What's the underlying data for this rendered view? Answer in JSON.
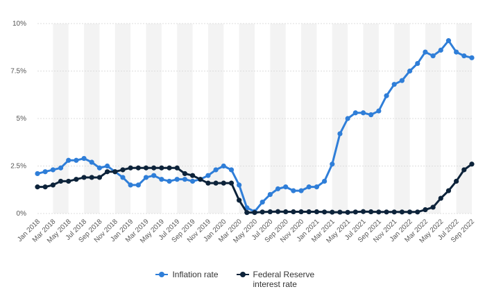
{
  "chart_data": {
    "type": "line",
    "title": "",
    "xlabel": "",
    "ylabel": "",
    "ylim": [
      0,
      10
    ],
    "y_ticks": [
      0,
      2.5,
      5,
      7.5,
      10
    ],
    "y_tick_labels": [
      "0%",
      "2.5%",
      "5%",
      "7.5%",
      "10%"
    ],
    "grid": "alternating vertical bands",
    "legend_position": "bottom",
    "categories": [
      "Jan 2018",
      "Feb 2018",
      "Mar 2018",
      "Apr 2018",
      "May 2018",
      "Jun 2018",
      "Jul 2018",
      "Aug 2018",
      "Sep 2018",
      "Oct 2018",
      "Nov 2018",
      "Dec 2018",
      "Jan 2019",
      "Feb 2019",
      "Mar 2019",
      "Apr 2019",
      "May 2019",
      "Jun 2019",
      "Jul 2019",
      "Aug 2019",
      "Sep 2019",
      "Oct 2019",
      "Nov 2019",
      "Dec 2019",
      "Jan 2020",
      "Feb 2020",
      "Mar 2020",
      "Apr 2020",
      "May 2020",
      "Jun 2020",
      "Jul 2020",
      "Aug 2020",
      "Sep 2020",
      "Oct 2020",
      "Nov 2020",
      "Dec 2020",
      "Jan 2021",
      "Feb 2021",
      "Mar 2021",
      "Apr 2021",
      "May 2021",
      "Jun 2021",
      "Jul 2021",
      "Aug 2021",
      "Sep 2021",
      "Oct 2021",
      "Nov 2021",
      "Dec 2021",
      "Jan 2022",
      "Feb 2022",
      "Mar 2022",
      "Apr 2022",
      "May 2022",
      "Jun 2022",
      "Jul 2022",
      "Aug 2022",
      "Sep 2022"
    ],
    "tick_labels": [
      "Jan 2018",
      "Mar 2018",
      "May 2018",
      "Jul 2018",
      "Sep 2018",
      "Nov 2018",
      "Jan 2019",
      "Mar 2019",
      "May 2019",
      "Jul 2019",
      "Sep 2019",
      "Nov 2019",
      "Jan 2020",
      "Mar 2020",
      "May 2020",
      "Jul 2020",
      "Sep 2020",
      "Nov 2020",
      "Jan 2021",
      "Mar 2021",
      "May 2021",
      "Jul 2021",
      "Sep 2021",
      "Nov 2021",
      "Jan 2022",
      "Mar 2022",
      "May 2022",
      "Jul 2022",
      "Sep 2022"
    ],
    "series": [
      {
        "name": "Inflation rate",
        "color": "#2f7ed8",
        "values": [
          2.1,
          2.2,
          2.3,
          2.4,
          2.8,
          2.8,
          2.9,
          2.7,
          2.4,
          2.5,
          2.2,
          1.9,
          1.5,
          1.5,
          1.9,
          2.0,
          1.8,
          1.7,
          1.8,
          1.8,
          1.7,
          1.8,
          2.0,
          2.3,
          2.5,
          2.3,
          1.5,
          0.3,
          0.1,
          0.6,
          1.0,
          1.3,
          1.4,
          1.2,
          1.2,
          1.4,
          1.4,
          1.7,
          2.6,
          4.2,
          5.0,
          5.3,
          5.3,
          5.2,
          5.4,
          6.2,
          6.8,
          7.0,
          7.5,
          7.9,
          8.5,
          8.3,
          8.6,
          9.1,
          8.5,
          8.3,
          8.2
        ]
      },
      {
        "name": "Federal Reserve interest rate",
        "color": "#0d233a",
        "values": [
          1.4,
          1.4,
          1.5,
          1.7,
          1.7,
          1.8,
          1.9,
          1.9,
          1.9,
          2.2,
          2.2,
          2.3,
          2.4,
          2.4,
          2.4,
          2.4,
          2.4,
          2.4,
          2.4,
          2.1,
          2.0,
          1.8,
          1.6,
          1.6,
          1.6,
          1.6,
          0.7,
          0.05,
          0.05,
          0.08,
          0.09,
          0.1,
          0.09,
          0.09,
          0.09,
          0.09,
          0.09,
          0.08,
          0.07,
          0.07,
          0.06,
          0.08,
          0.1,
          0.09,
          0.08,
          0.08,
          0.08,
          0.08,
          0.08,
          0.08,
          0.2,
          0.33,
          0.8,
          1.2,
          1.7,
          2.3,
          2.6
        ]
      }
    ]
  }
}
